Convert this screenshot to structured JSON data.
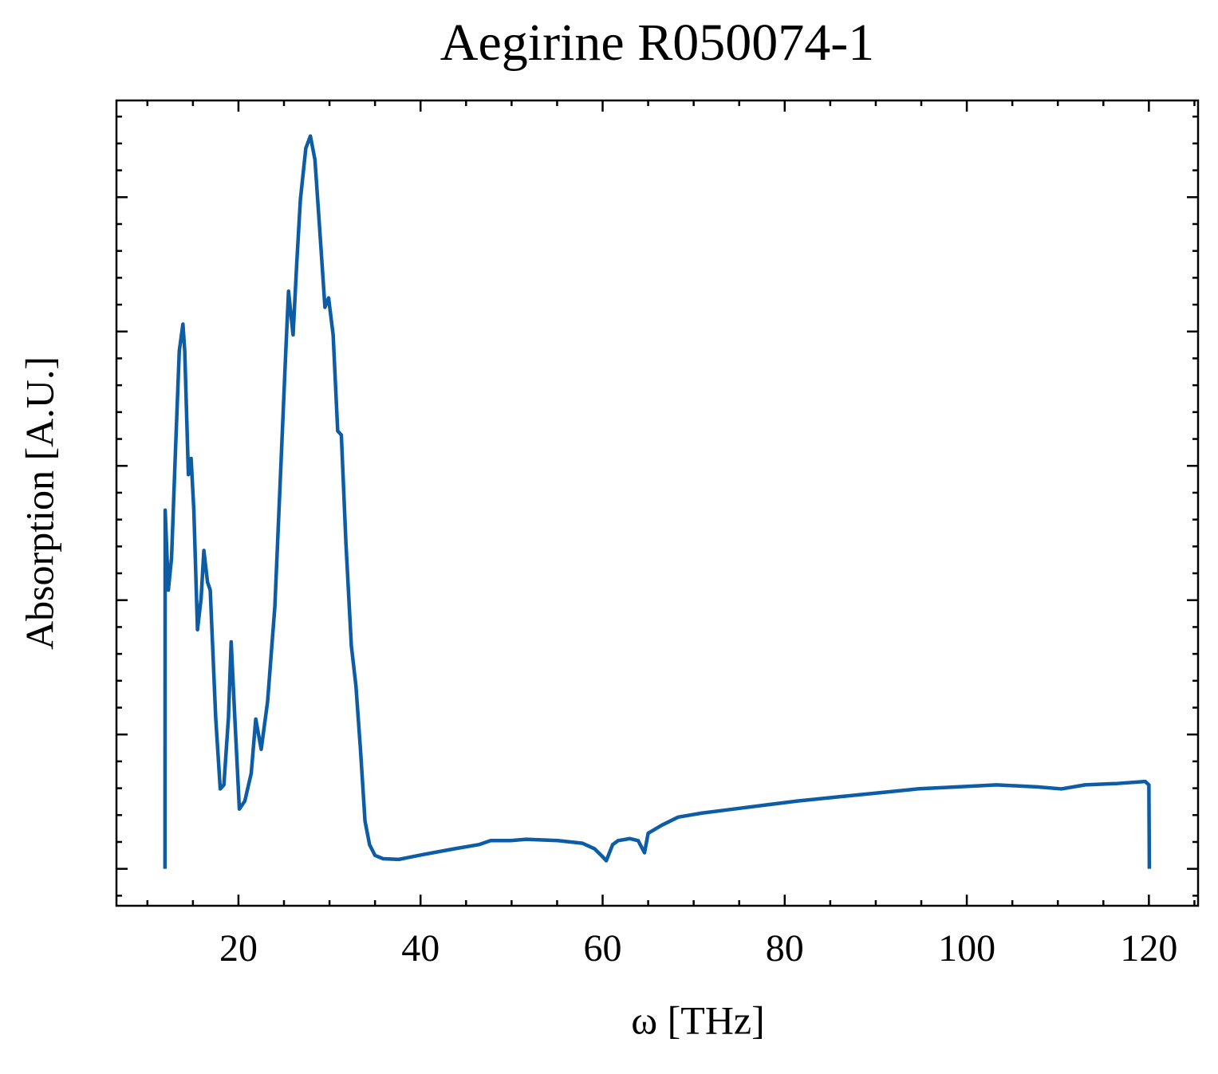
{
  "chart_data": {
    "type": "line",
    "title": "Aegirine R050074-1",
    "x_label": "ω [THz]",
    "y_label": "Absorption [A.U.]",
    "xlim": [
      6.6,
      125.4
    ],
    "xticks": [
      20,
      40,
      60,
      80,
      100,
      120
    ],
    "xticks_minor": [
      10,
      15,
      25,
      30,
      35,
      45,
      50,
      55,
      65,
      70,
      75,
      85,
      90,
      95,
      105,
      110,
      115,
      125
    ],
    "ylim": [
      -0.055,
      1.144
    ],
    "yticks": [
      0,
      0.2,
      0.4,
      0.6,
      0.8,
      1.0
    ],
    "yticks_minor": [
      -0.04,
      0.04,
      0.08,
      0.12,
      0.16,
      0.24,
      0.28,
      0.32,
      0.36,
      0.44,
      0.48,
      0.52,
      0.56,
      0.64,
      0.68,
      0.72,
      0.76,
      0.84,
      0.88,
      0.92,
      0.96,
      1.04,
      1.08,
      1.12
    ],
    "y_tick_labels_shown": false,
    "series": [
      {
        "color": "#0c5da5",
        "x": [
          11.93,
          11.95,
          12.3,
          12.65,
          13.1,
          13.5,
          13.9,
          14.1,
          14.5,
          14.8,
          15.1,
          15.5,
          15.9,
          16.2,
          16.6,
          16.9,
          17.5,
          18.0,
          18.4,
          18.9,
          19.2,
          19.6,
          20.1,
          20.7,
          21.4,
          21.9,
          22.5,
          23.2,
          24.0,
          24.6,
          25.2,
          25.5,
          26.0,
          26.4,
          26.8,
          27.4,
          27.9,
          28.4,
          29.0,
          29.5,
          29.9,
          30.4,
          30.9,
          31.3,
          31.8,
          32.4,
          32.9,
          33.4,
          33.9,
          34.4,
          35.0,
          35.9,
          37.6,
          40.2,
          43.8,
          46.4,
          47.7,
          49.9,
          51.6,
          55.1,
          57.8,
          59.1,
          60.0,
          60.4,
          61.1,
          61.7,
          63.0,
          63.9,
          64.6,
          65.0,
          66.5,
          68.3,
          70.9,
          74.4,
          77.9,
          81.4,
          85.8,
          90.2,
          94.6,
          99.0,
          103.3,
          107.7,
          110.4,
          113.0,
          116.5,
          119.6,
          120.0,
          120.05
        ],
        "values": [
          0,
          0.534,
          0.415,
          0.463,
          0.629,
          0.771,
          0.811,
          0.771,
          0.587,
          0.611,
          0.534,
          0.356,
          0.403,
          0.474,
          0.427,
          0.415,
          0.225,
          0.119,
          0.125,
          0.225,
          0.338,
          0.225,
          0.089,
          0.101,
          0.142,
          0.223,
          0.178,
          0.249,
          0.391,
          0.581,
          0.771,
          0.86,
          0.795,
          0.901,
          0.996,
          1.073,
          1.091,
          1.056,
          0.937,
          0.836,
          0.85,
          0.795,
          0.652,
          0.646,
          0.486,
          0.332,
          0.273,
          0.178,
          0.071,
          0.036,
          0.02,
          0.015,
          0.014,
          0.021,
          0.03,
          0.036,
          0.042,
          0.042,
          0.044,
          0.042,
          0.038,
          0.03,
          0.018,
          0.012,
          0.036,
          0.042,
          0.045,
          0.042,
          0.024,
          0.053,
          0.065,
          0.077,
          0.083,
          0.089,
          0.095,
          0.101,
          0.107,
          0.113,
          0.119,
          0.122,
          0.125,
          0.122,
          0.119,
          0.125,
          0.127,
          0.13,
          0.125,
          0
        ]
      }
    ]
  }
}
